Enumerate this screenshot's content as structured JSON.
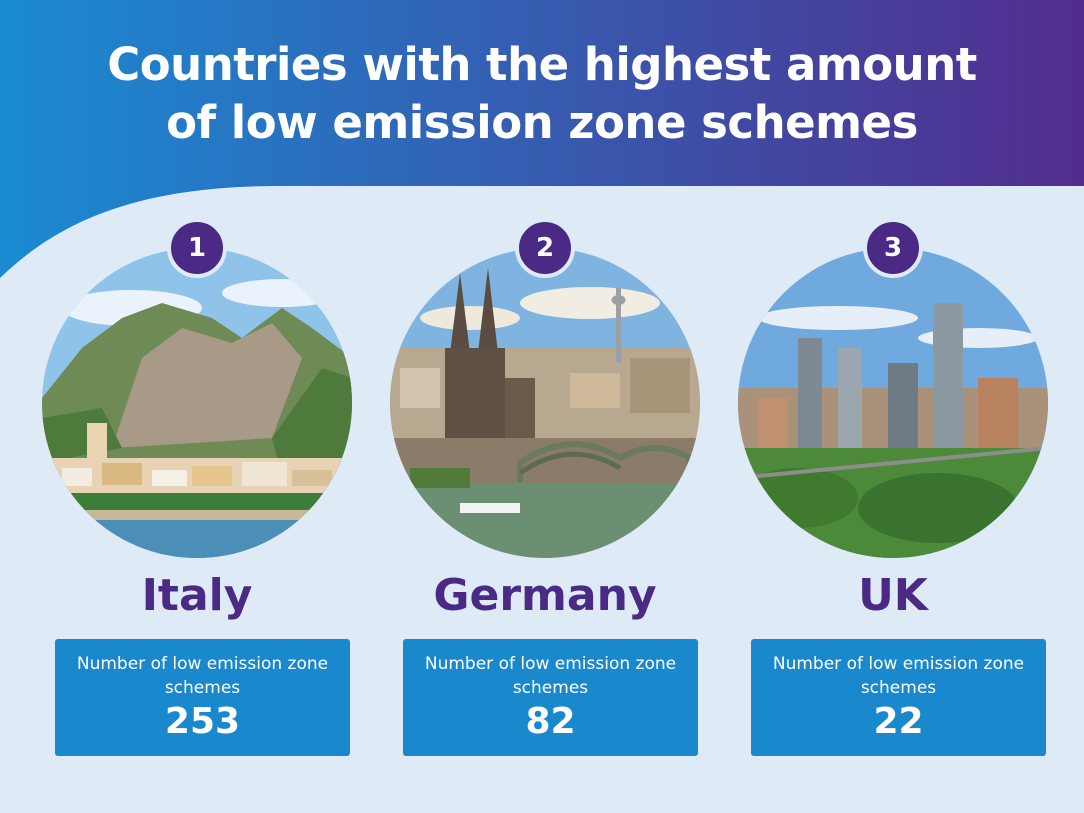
{
  "title": {
    "line1": "Countries with the highest amount",
    "line2": "of low emission zone schemes"
  },
  "colors": {
    "header_start": "#1a8bd2",
    "header_end": "#522c8e",
    "page_background": "#deebf6",
    "rank_badge": "#4a2a85",
    "country_name": "#4a2a85",
    "stat_box": "#1a88cc"
  },
  "countries": [
    {
      "rank": "1",
      "name": "Italy",
      "stat_label": "Number of low emission zone schemes",
      "stat_value": "253",
      "image": "amalfi-coast-photo"
    },
    {
      "rank": "2",
      "name": "Germany",
      "stat_label": "Number of low emission zone schemes",
      "stat_value": "82",
      "image": "cologne-cathedral-photo"
    },
    {
      "rank": "3",
      "name": "UK",
      "stat_label": "Number of low emission zone schemes",
      "stat_value": "22",
      "image": "manchester-skyline-photo"
    }
  ]
}
